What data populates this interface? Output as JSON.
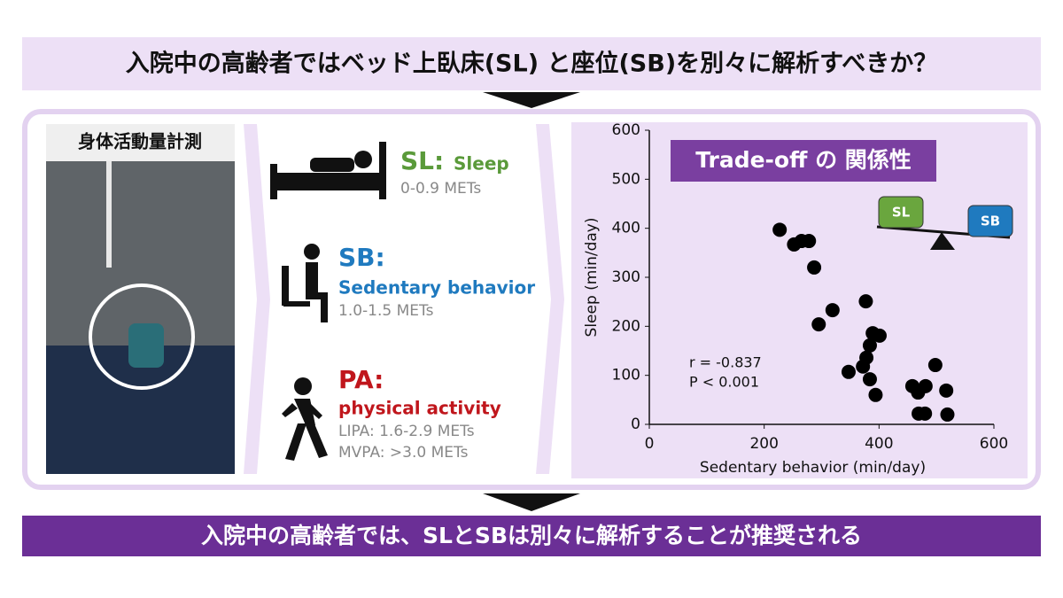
{
  "header": {
    "title": "入院中の高齢者ではベッド上臥床(SL) と座位(SB)を別々に解析すべきか？"
  },
  "photo": {
    "label": "身体活動量計測"
  },
  "categories": [
    {
      "code": "SL:",
      "name": "Sleep",
      "mets": [
        "0-0.9 METs"
      ]
    },
    {
      "code": "SB:",
      "name": "Sedentary behavior",
      "mets": [
        "1.0-1.5 METs"
      ]
    },
    {
      "code": "PA:",
      "name": "physical activity",
      "mets": [
        "LIPA: 1.6-2.9 METs",
        "MVPA: >3.0 METs"
      ]
    }
  ],
  "footer": {
    "conclusion": "入院中の高齢者では、SLとSBは別々に解析することが推奨される"
  },
  "chart_data": {
    "type": "scatter",
    "title": "Trade-off の 関係性",
    "xlabel": "Sedentary behavior (min/day)",
    "ylabel": "Sleep (min/day)",
    "x": [
      227,
      252,
      265,
      278,
      287,
      319,
      295,
      377,
      389,
      401,
      384,
      378,
      372,
      347,
      384,
      394,
      458,
      468,
      481,
      498,
      517,
      469,
      480,
      519
    ],
    "values": [
      397,
      367,
      374,
      374,
      320,
      233,
      204,
      251,
      186,
      181,
      161,
      136,
      118,
      107,
      92,
      60,
      78,
      65,
      78,
      121,
      69,
      22,
      22,
      20
    ],
    "color": "#000000",
    "xlim": [
      0,
      600
    ],
    "ylim": [
      0,
      600
    ],
    "xticks": [
      0,
      200,
      400,
      600
    ],
    "yticks": [
      0,
      100,
      200,
      300,
      400,
      500,
      600
    ],
    "annotations": [
      "r = -0.837",
      "P < 0.001"
    ],
    "icon_labels": [
      "SL",
      "SB"
    ]
  }
}
